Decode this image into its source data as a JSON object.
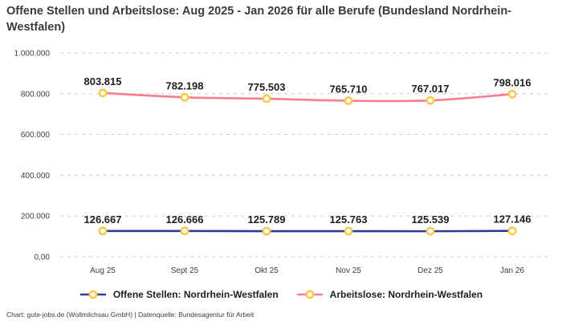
{
  "title": "Offene Stellen und Arbeitslose: Aug 2025 - Jan 2026 für alle Berufe (Bundesland Nordrhein-Westfalen)",
  "chart_data": {
    "type": "line",
    "title": "Offene Stellen und Arbeitslose: Aug 2025 - Jan 2026 für alle Berufe (Bundesland Nordrhein-Westfalen)",
    "categories": [
      "Aug 25",
      "Sept 25",
      "Okt 25",
      "Nov 25",
      "Dez 25",
      "Jan 26"
    ],
    "series": [
      {
        "name": "Offene Stellen: Nordrhein-Westfalen",
        "color": "#2A3A99",
        "values": [
          126667,
          126666,
          125789,
          125763,
          125539,
          127146
        ],
        "labels": [
          "126.667",
          "126.666",
          "125.789",
          "125.763",
          "125.539",
          "127.146"
        ]
      },
      {
        "name": "Arbeitslose: Nordrhein-Westfalen",
        "color": "#F97B90",
        "values": [
          803815,
          782198,
          775503,
          765710,
          767017,
          798016
        ],
        "labels": [
          "803.815",
          "782.198",
          "775.503",
          "765.710",
          "767.017",
          "798.016"
        ]
      }
    ],
    "y_ticks": [
      {
        "value": 0,
        "label": "0,00"
      },
      {
        "value": 200000,
        "label": "200.000"
      },
      {
        "value": 400000,
        "label": "400.000"
      },
      {
        "value": 600000,
        "label": "600.000"
      },
      {
        "value": 800000,
        "label": "800.000"
      },
      {
        "value": 1000000,
        "label": "1.000.000"
      }
    ],
    "ylim": [
      0,
      1000000
    ],
    "grid": true,
    "legend_position": "bottom",
    "marker": {
      "fill": "#ffffff",
      "ring": "#FFC63E"
    },
    "colors": {
      "gridline": "#cccccc",
      "axis_text": "#3d3d3d",
      "data_label": "#1d1d1d"
    }
  },
  "footer": {
    "attribution": "Chart: gute-jobs.de (Wollmilchsau GmbH) | Datenquelle: Bundesagentur für Arbeit"
  }
}
